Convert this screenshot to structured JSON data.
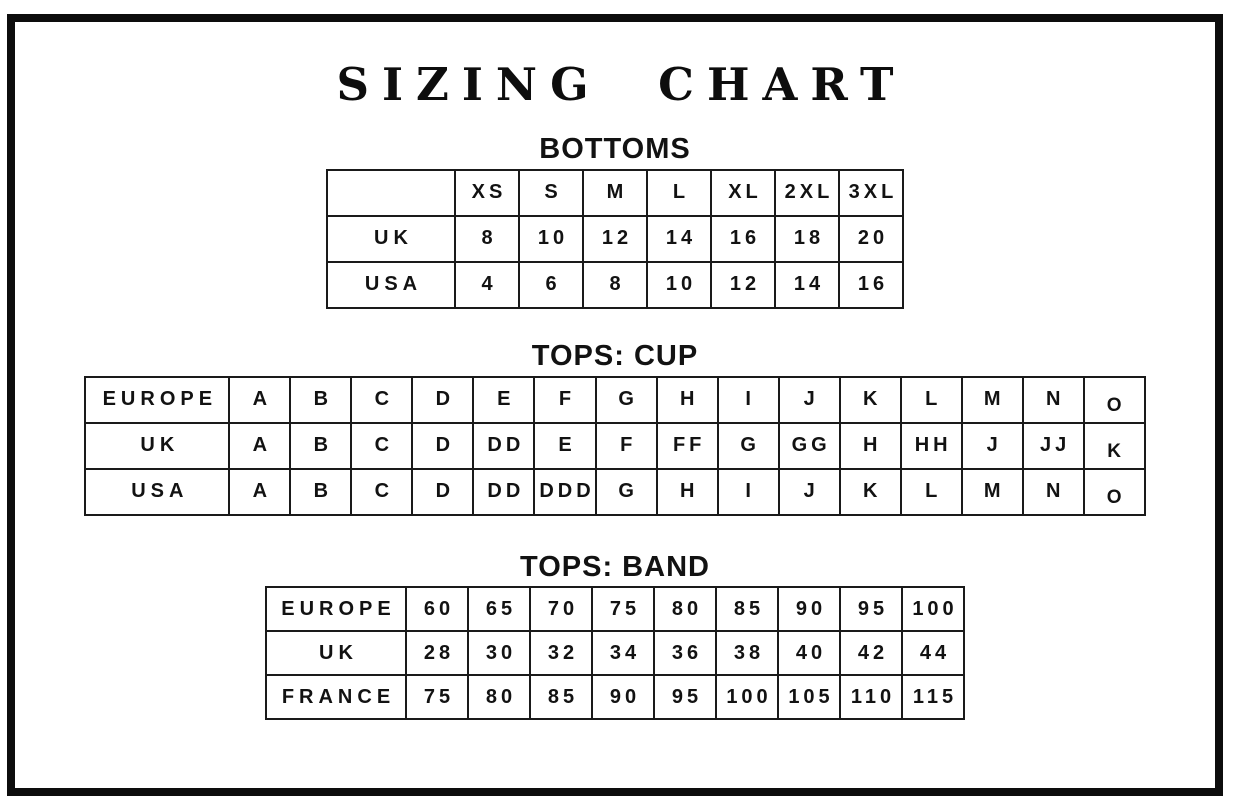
{
  "page_title": "SIZING CHART",
  "colors": {
    "background": "#ffffff",
    "ink": "#161616",
    "frame_border": "#0d0d0d"
  },
  "sections": [
    {
      "id": "bottoms",
      "title": "BOTTOMS",
      "header_row": [
        "",
        "XS",
        "S",
        "M",
        "L",
        "XL",
        "2XL",
        "3XL"
      ],
      "rows": [
        {
          "label": "UK",
          "values": [
            "8",
            "10",
            "12",
            "14",
            "16",
            "18",
            "20"
          ]
        },
        {
          "label": "USA",
          "values": [
            "4",
            "6",
            "8",
            "10",
            "12",
            "14",
            "16"
          ]
        }
      ]
    },
    {
      "id": "tops_cup",
      "title": "TOPS: CUP",
      "rows": [
        {
          "label": "EUROPE",
          "values": [
            "A",
            "B",
            "C",
            "D",
            "E",
            "F",
            "G",
            "H",
            "I",
            "J",
            "K",
            "L",
            "M",
            "N",
            "O"
          ]
        },
        {
          "label": "UK",
          "values": [
            "A",
            "B",
            "C",
            "D",
            "DD",
            "E",
            "F",
            "FF",
            "G",
            "GG",
            "H",
            "HH",
            "J",
            "JJ",
            "K"
          ]
        },
        {
          "label": "USA",
          "values": [
            "A",
            "B",
            "C",
            "D",
            "DD",
            "DDD",
            "G",
            "H",
            "I",
            "J",
            "K",
            "L",
            "M",
            "N",
            "O"
          ]
        }
      ]
    },
    {
      "id": "tops_band",
      "title": "TOPS: BAND",
      "rows": [
        {
          "label": "EUROPE",
          "values": [
            "60",
            "65",
            "70",
            "75",
            "80",
            "85",
            "90",
            "95",
            "100"
          ]
        },
        {
          "label": "UK",
          "values": [
            "28",
            "30",
            "32",
            "34",
            "36",
            "38",
            "40",
            "42",
            "44"
          ]
        },
        {
          "label": "FRANCE",
          "values": [
            "75",
            "80",
            "85",
            "90",
            "95",
            "100",
            "105",
            "110",
            "115"
          ]
        }
      ]
    }
  ]
}
